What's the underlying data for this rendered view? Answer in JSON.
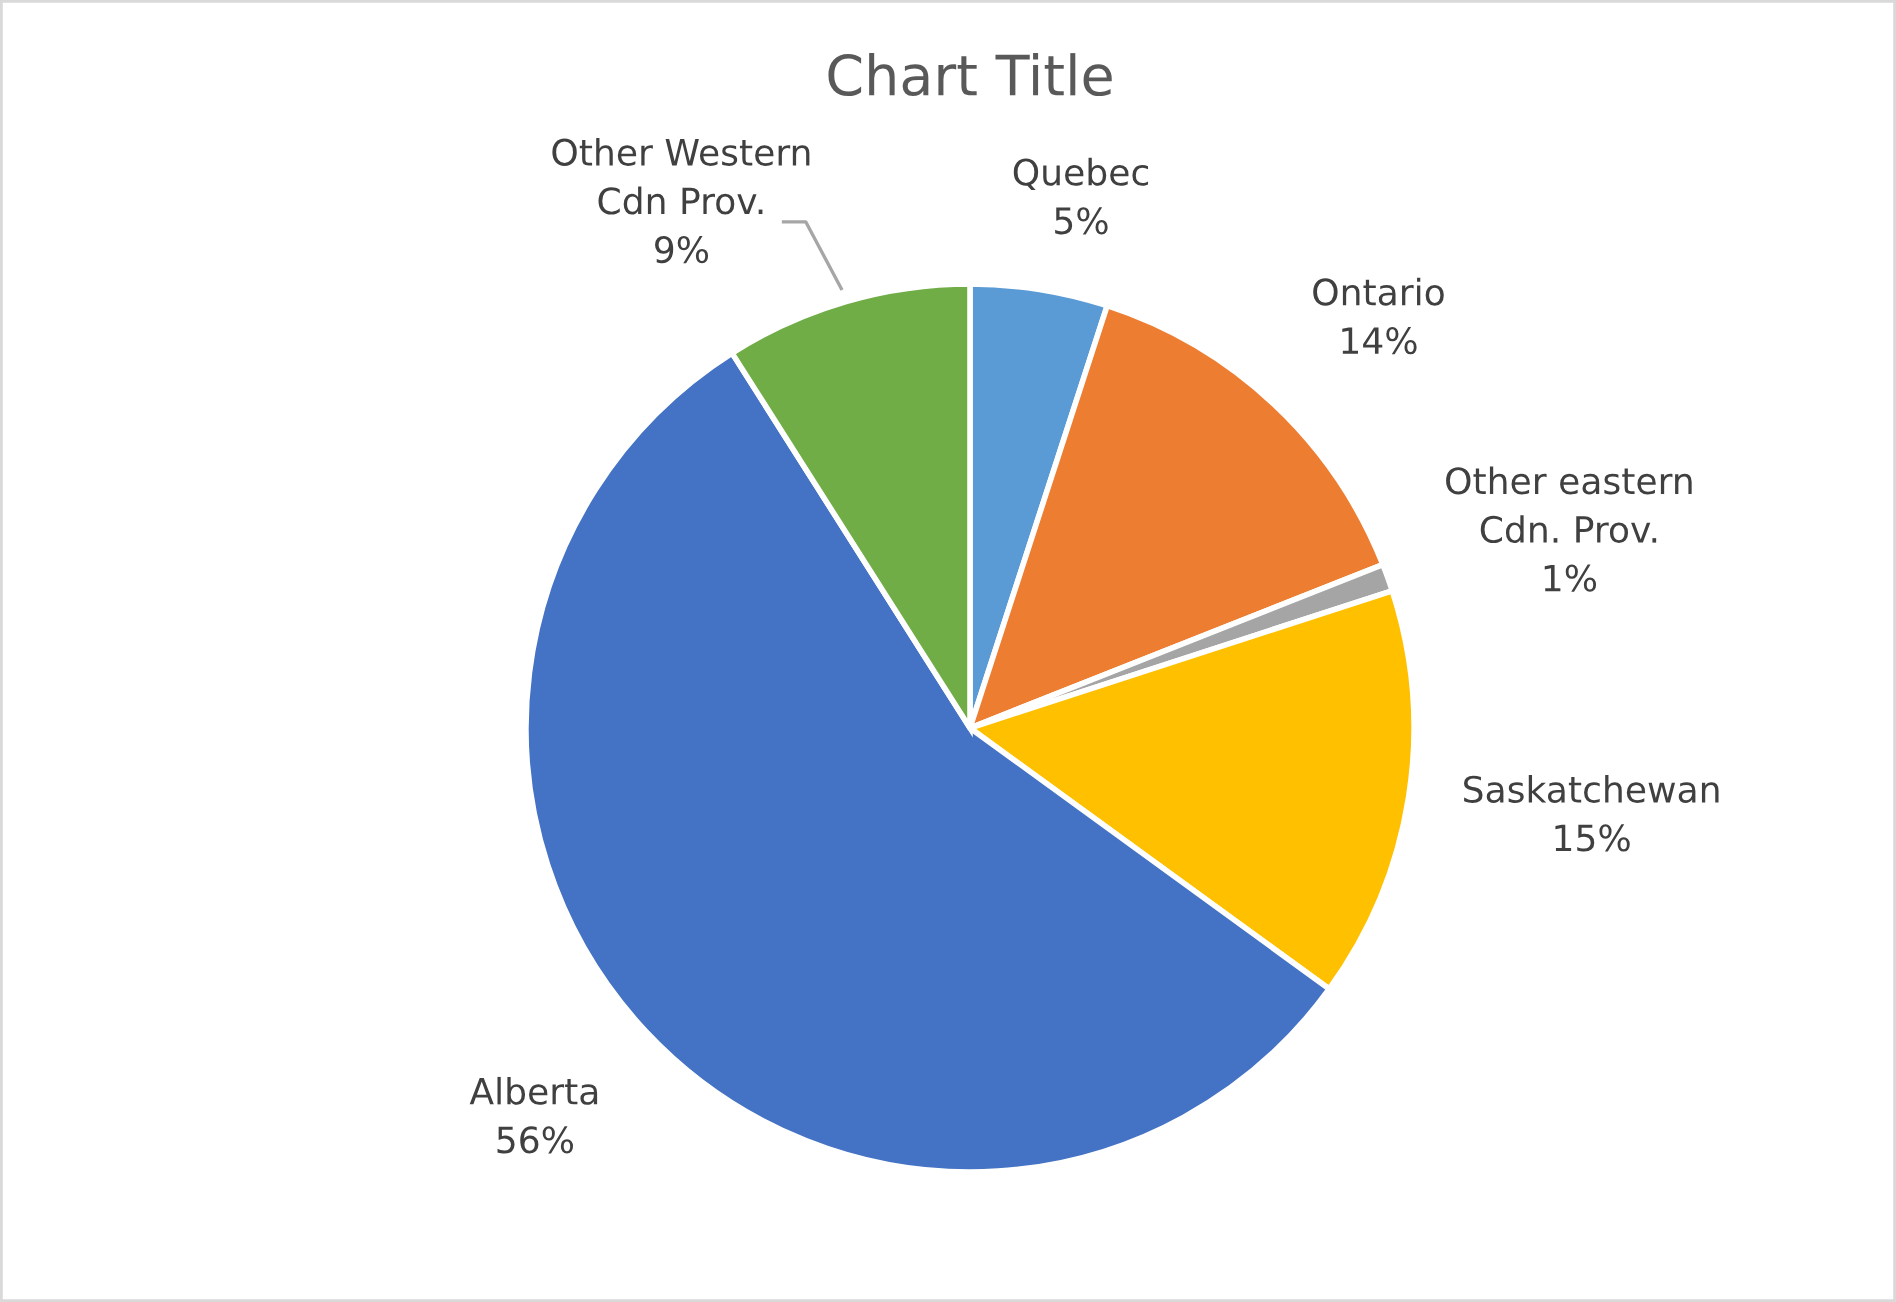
{
  "chart_data": {
    "type": "pie",
    "title": "Chart Title",
    "categories": [
      "Quebec",
      "Ontario",
      "Other eastern\nCdn. Prov.",
      "Saskatchewan",
      "Alberta",
      "Other Western\nCdn Prov."
    ],
    "values": [
      5,
      14,
      1,
      15,
      56,
      9
    ],
    "value_labels": [
      "5%",
      "14%",
      "1%",
      "15%",
      "56%",
      "9%"
    ],
    "colors": [
      "#5b9bd5",
      "#ed7d31",
      "#a5a5a5",
      "#ffc000",
      "#4472c4",
      "#70ad47"
    ]
  }
}
